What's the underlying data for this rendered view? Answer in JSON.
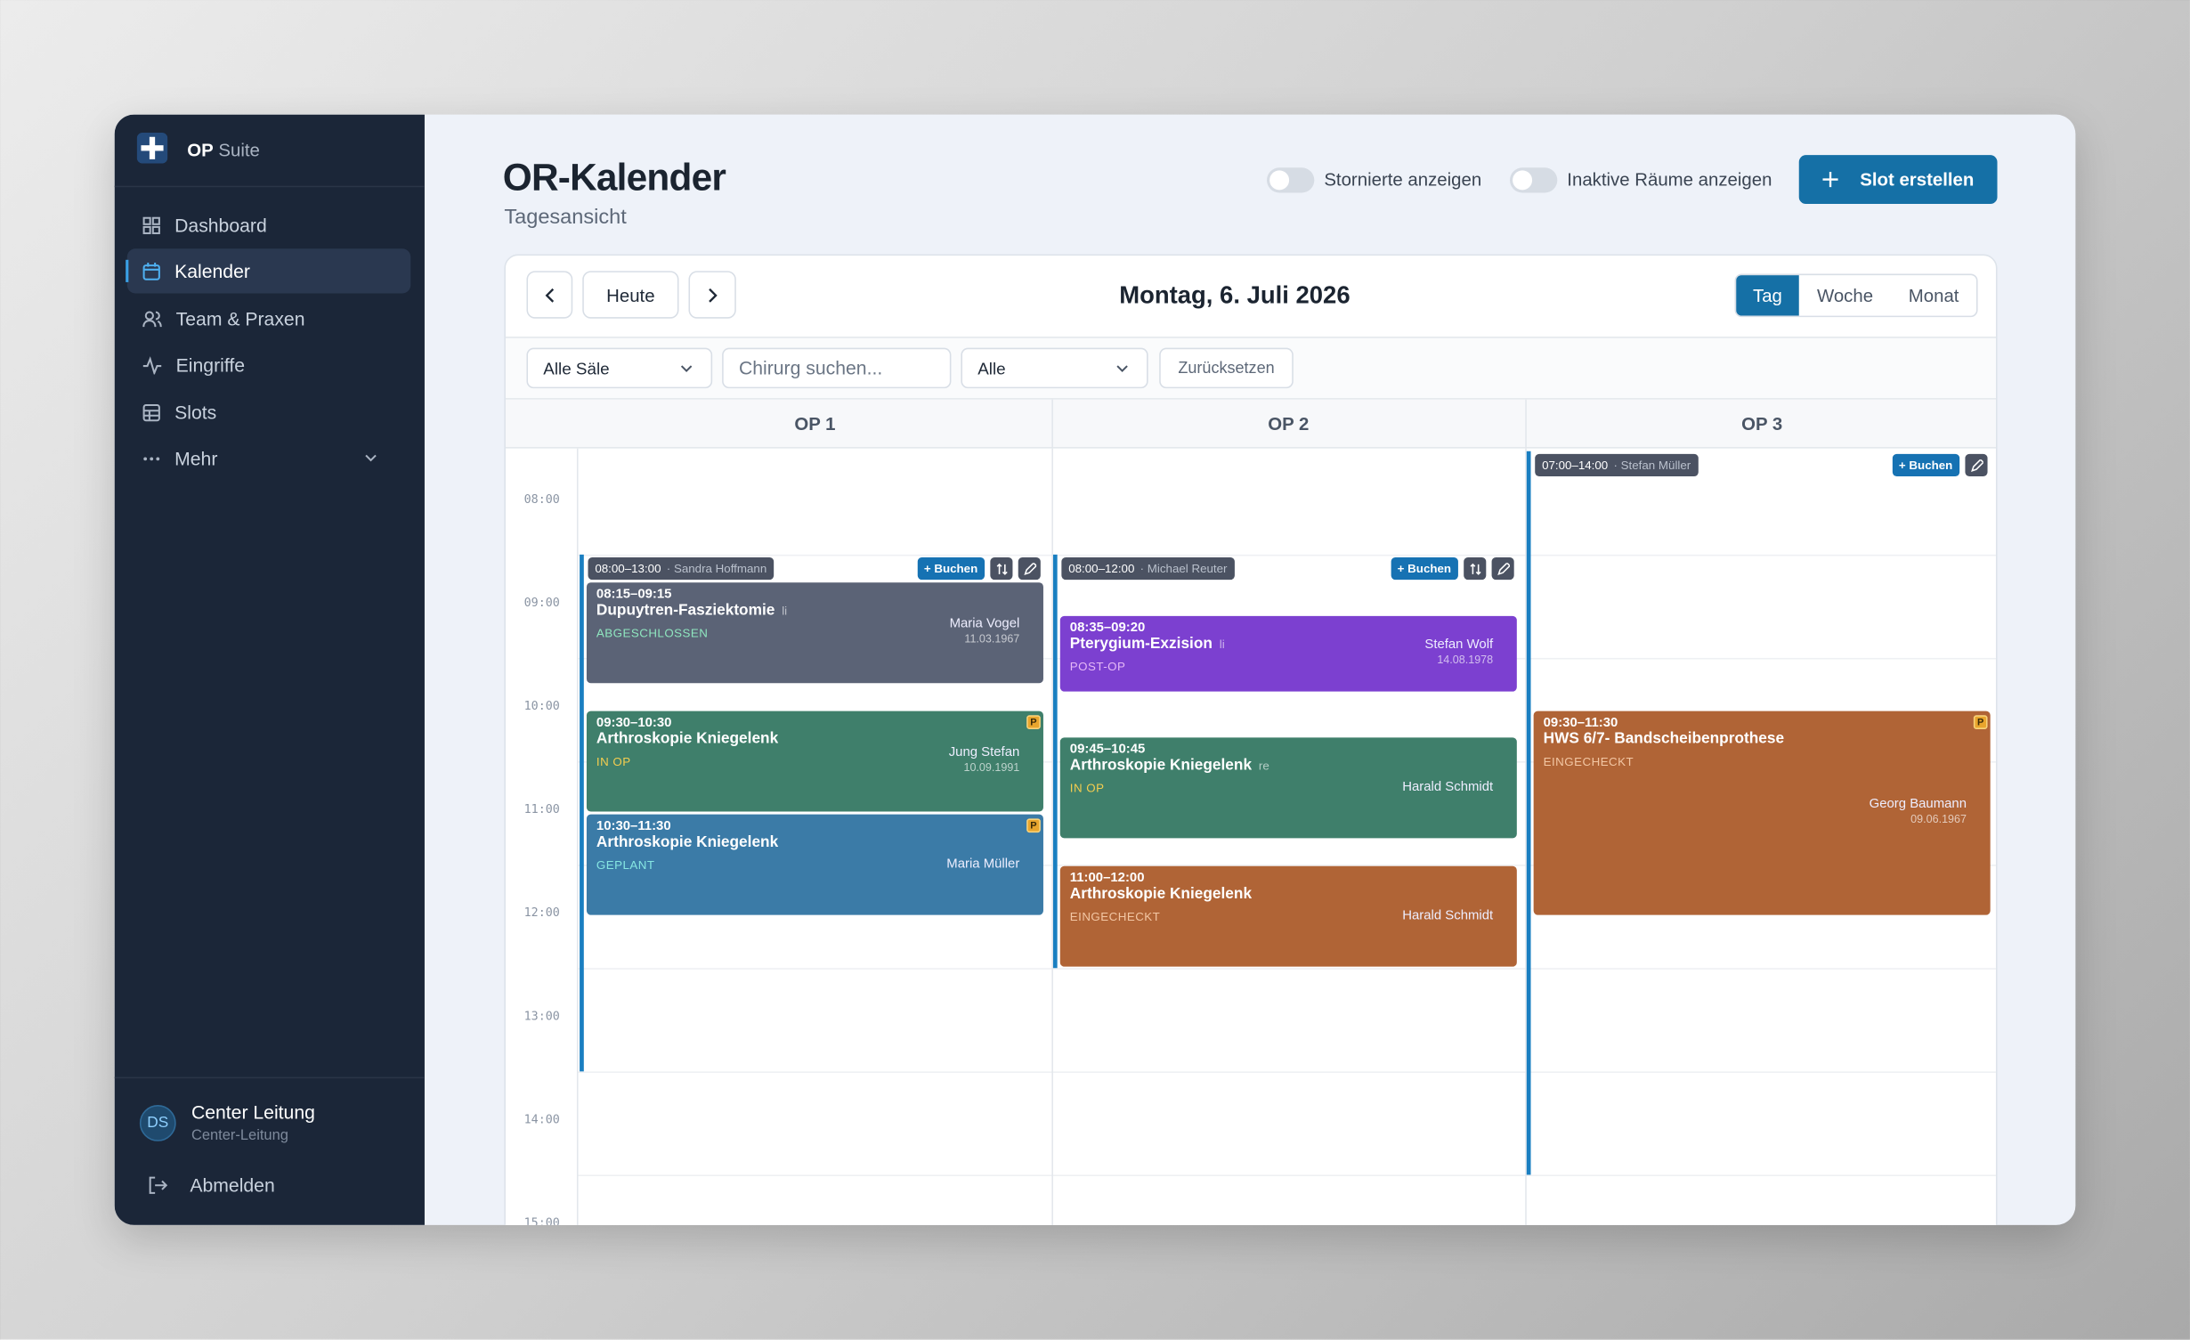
{
  "sidebar": {
    "brand": {
      "name": "OP",
      "suffix": "Suite"
    },
    "nav": [
      "Dashboard",
      "Kalender",
      "Team & Praxen",
      "Eingriffe",
      "Slots",
      "Mehr"
    ],
    "user": {
      "initials": "DS",
      "name": "Center Leitung",
      "role": "Center-Leitung"
    },
    "logout": "Abmelden"
  },
  "header": {
    "title": "OR-Kalender",
    "subtitle": "Tagesansicht",
    "toggles": [
      "Stornierte anzeigen",
      "Inaktive Räume anzeigen"
    ],
    "create_button": "Slot erstellen"
  },
  "toolbar": {
    "today": "Heute",
    "date": "Montag, 6. Juli 2026",
    "views": [
      "Tag",
      "Woche",
      "Monat"
    ]
  },
  "filters": {
    "rooms_select": "Alle Säle",
    "search_placeholder": "Chirurg suchen...",
    "status_select": "Alle",
    "reset": "Zurücksetzen"
  },
  "calendar": {
    "hours": [
      "08:00",
      "09:00",
      "10:00",
      "11:00",
      "12:00",
      "13:00",
      "14:00",
      "15:00"
    ],
    "rooms": [
      {
        "name": "OP 1",
        "slot": {
          "time": "08:00–13:00",
          "surgeon": "· Sandra Hoffmann",
          "book": "+ Buchen",
          "sort": true
        },
        "appointments": [
          {
            "time": "08:15–09:15",
            "procedure": "Dupuytren-Fasziektomie",
            "side": "li",
            "status": "ABGESCHLOSSEN",
            "patient": "Maria Vogel",
            "dob": "11.03.1967",
            "color": "#5b6376",
            "status_color": "#8fe6bf"
          },
          {
            "time": "09:30–10:30",
            "procedure": "Arthroskopie Kniegelenk",
            "status": "IN OP",
            "patient": "Jung Stefan",
            "dob": "10.09.1991",
            "badge": "P",
            "color": "#3f7f6b",
            "status_color": "#f4cd4f"
          },
          {
            "time": "10:30–11:30",
            "procedure": "Arthroskopie Kniegelenk",
            "status": "GEPLANT",
            "patient": "Maria Müller",
            "badge": "P",
            "color": "#3b7ba7",
            "status_color": "#86e6e2"
          }
        ]
      },
      {
        "name": "OP 2",
        "slot": {
          "time": "08:00–12:00",
          "surgeon": "· Michael Reuter",
          "book": "+ Buchen",
          "sort": true
        },
        "appointments": [
          {
            "time": "08:35–09:20",
            "procedure": "Pterygium-Exzision",
            "side": "li",
            "status": "POST-OP",
            "patient": "Stefan Wolf",
            "dob": "14.08.1978",
            "color": "#7c40d0",
            "status_color": "#e6b8f7"
          },
          {
            "time": "09:45–10:45",
            "procedure": "Arthroskopie Kniegelenk",
            "side": "re",
            "status": "IN OP",
            "patient": "Harald Schmidt",
            "color": "#3f7f6b",
            "status_color": "#f4cd4f"
          },
          {
            "time": "11:00–12:00",
            "procedure": "Arthroskopie Kniegelenk",
            "status": "EINGECHECKT",
            "patient": "Harald Schmidt",
            "color": "#b06436",
            "status_color": "#f3c7a4"
          }
        ]
      },
      {
        "name": "OP 3",
        "slot": {
          "time": "07:00–14:00",
          "surgeon": "· Stefan Müller",
          "book": "+ Buchen",
          "sort": false
        },
        "appointments": [
          {
            "time": "09:30–11:30",
            "procedure": "HWS 6/7- Bandscheibenprothese",
            "status": "EINGECHECKT",
            "patient": "Georg Baumann",
            "dob": "09.06.1967",
            "badge": "P",
            "color": "#b06436",
            "status_color": "#f3c7a4"
          }
        ]
      }
    ]
  }
}
